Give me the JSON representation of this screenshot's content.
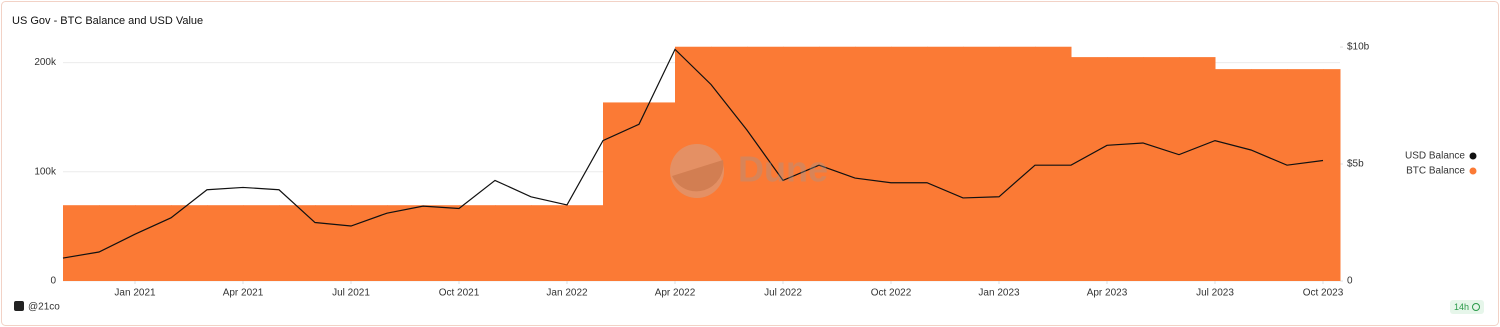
{
  "chart_data": {
    "type": "combo",
    "title": "US Gov - BTC Balance and USD Value",
    "watermark": "Dune",
    "credit": "@21co",
    "badge": "14h",
    "x": [
      "2020-11",
      "2020-12",
      "2021-01",
      "2021-02",
      "2021-03",
      "2021-04",
      "2021-05",
      "2021-06",
      "2021-07",
      "2021-08",
      "2021-09",
      "2021-10",
      "2021-11",
      "2021-12",
      "2022-01",
      "2022-02",
      "2022-03",
      "2022-04",
      "2022-05",
      "2022-06",
      "2022-07",
      "2022-08",
      "2022-09",
      "2022-10",
      "2022-11",
      "2022-12",
      "2023-01",
      "2023-02",
      "2023-03",
      "2023-04",
      "2023-05",
      "2023-06",
      "2023-07",
      "2023-08",
      "2023-09",
      "2023-10"
    ],
    "series": [
      {
        "name": "USD Balance",
        "color": "#111111",
        "type": "line",
        "axis": "y2",
        "values": [
          980000000,
          1240000000,
          2000000000,
          2700000000,
          3900000000,
          4000000000,
          3900000000,
          2500000000,
          2350000000,
          2900000000,
          3200000000,
          3100000000,
          4300000000,
          3600000000,
          3250000000,
          6000000000,
          6700000000,
          9900000000,
          8400000000,
          6450000000,
          4300000000,
          4950000000,
          4400000000,
          4200000000,
          4200000000,
          3550000000,
          3600000000,
          4950000000,
          4950000000,
          5800000000,
          5900000000,
          5400000000,
          6000000000,
          5600000000,
          4950000000,
          5150000000
        ]
      },
      {
        "name": "BTC Balance",
        "color": "#fb7a35",
        "type": "area",
        "step": true,
        "values": [
          69400,
          69400,
          69400,
          69400,
          69400,
          69400,
          69400,
          69400,
          69400,
          69400,
          69400,
          69400,
          69400,
          69400,
          69400,
          163500,
          163500,
          214500,
          214500,
          214500,
          214500,
          214500,
          214500,
          214500,
          214500,
          214500,
          214500,
          214500,
          205000,
          205000,
          205000,
          205000,
          194000,
          194000,
          194000,
          194000
        ]
      }
    ],
    "ylim": [
      0,
      217000
    ],
    "yticks": [
      0,
      {
        "value": 100000,
        "label": "100k"
      },
      {
        "value": 200000,
        "label": "200k"
      }
    ],
    "y2lim": [
      0,
      10130000000
    ],
    "y2ticks": [
      0,
      {
        "value": 5000000000,
        "label": "$5b"
      },
      {
        "value": 10000000000,
        "label": "$10b"
      }
    ],
    "xticks": [
      {
        "value": "2021-01",
        "label": "Jan 2021"
      },
      {
        "value": "2021-04",
        "label": "Apr 2021"
      },
      {
        "value": "2021-07",
        "label": "Jul 2021"
      },
      {
        "value": "2021-10",
        "label": "Oct 2021"
      },
      {
        "value": "2022-01",
        "label": "Jan 2022"
      },
      {
        "value": "2022-04",
        "label": "Apr 2022"
      },
      {
        "value": "2022-07",
        "label": "Jul 2022"
      },
      {
        "value": "2022-10",
        "label": "Oct 2022"
      },
      {
        "value": "2023-01",
        "label": "Jan 2023"
      },
      {
        "value": "2023-04",
        "label": "Apr 2023"
      },
      {
        "value": "2023-07",
        "label": "Jul 2023"
      },
      {
        "value": "2023-10",
        "label": "Oct 2023"
      }
    ],
    "grid": true
  }
}
